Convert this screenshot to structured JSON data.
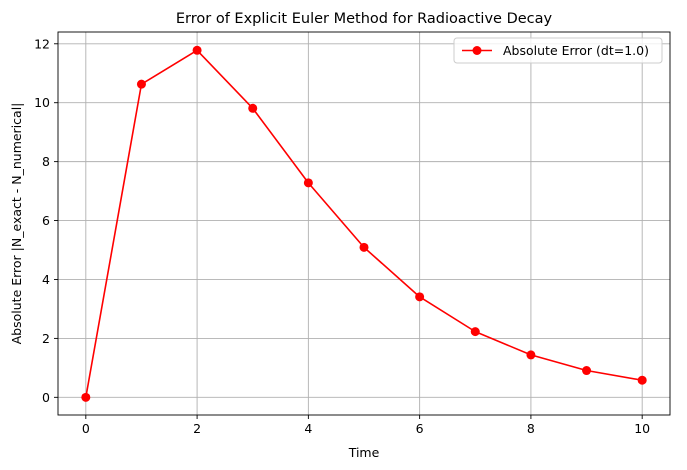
{
  "chart_data": {
    "type": "line",
    "title": "Error of Explicit Euler Method for Radioactive Decay",
    "xlabel": "Time",
    "ylabel": "Absolute Error |N_exact - N_numerical|",
    "xlim": [
      -0.5,
      10.5
    ],
    "ylim": [
      -0.6,
      12.4
    ],
    "xticks": [
      0,
      2,
      4,
      6,
      8,
      10
    ],
    "yticks": [
      0,
      2,
      4,
      6,
      8,
      10,
      12
    ],
    "grid": true,
    "legend_position": "upper right",
    "series": [
      {
        "name": "Absolute Error (dt=1.0)",
        "color": "#ff0000",
        "marker": "circle",
        "x": [
          0,
          1,
          2,
          3,
          4,
          5,
          6,
          7,
          8,
          9,
          10
        ],
        "y": [
          0.0,
          10.63,
          11.78,
          9.81,
          7.28,
          5.09,
          3.41,
          2.23,
          1.44,
          0.91,
          0.58
        ]
      }
    ]
  }
}
